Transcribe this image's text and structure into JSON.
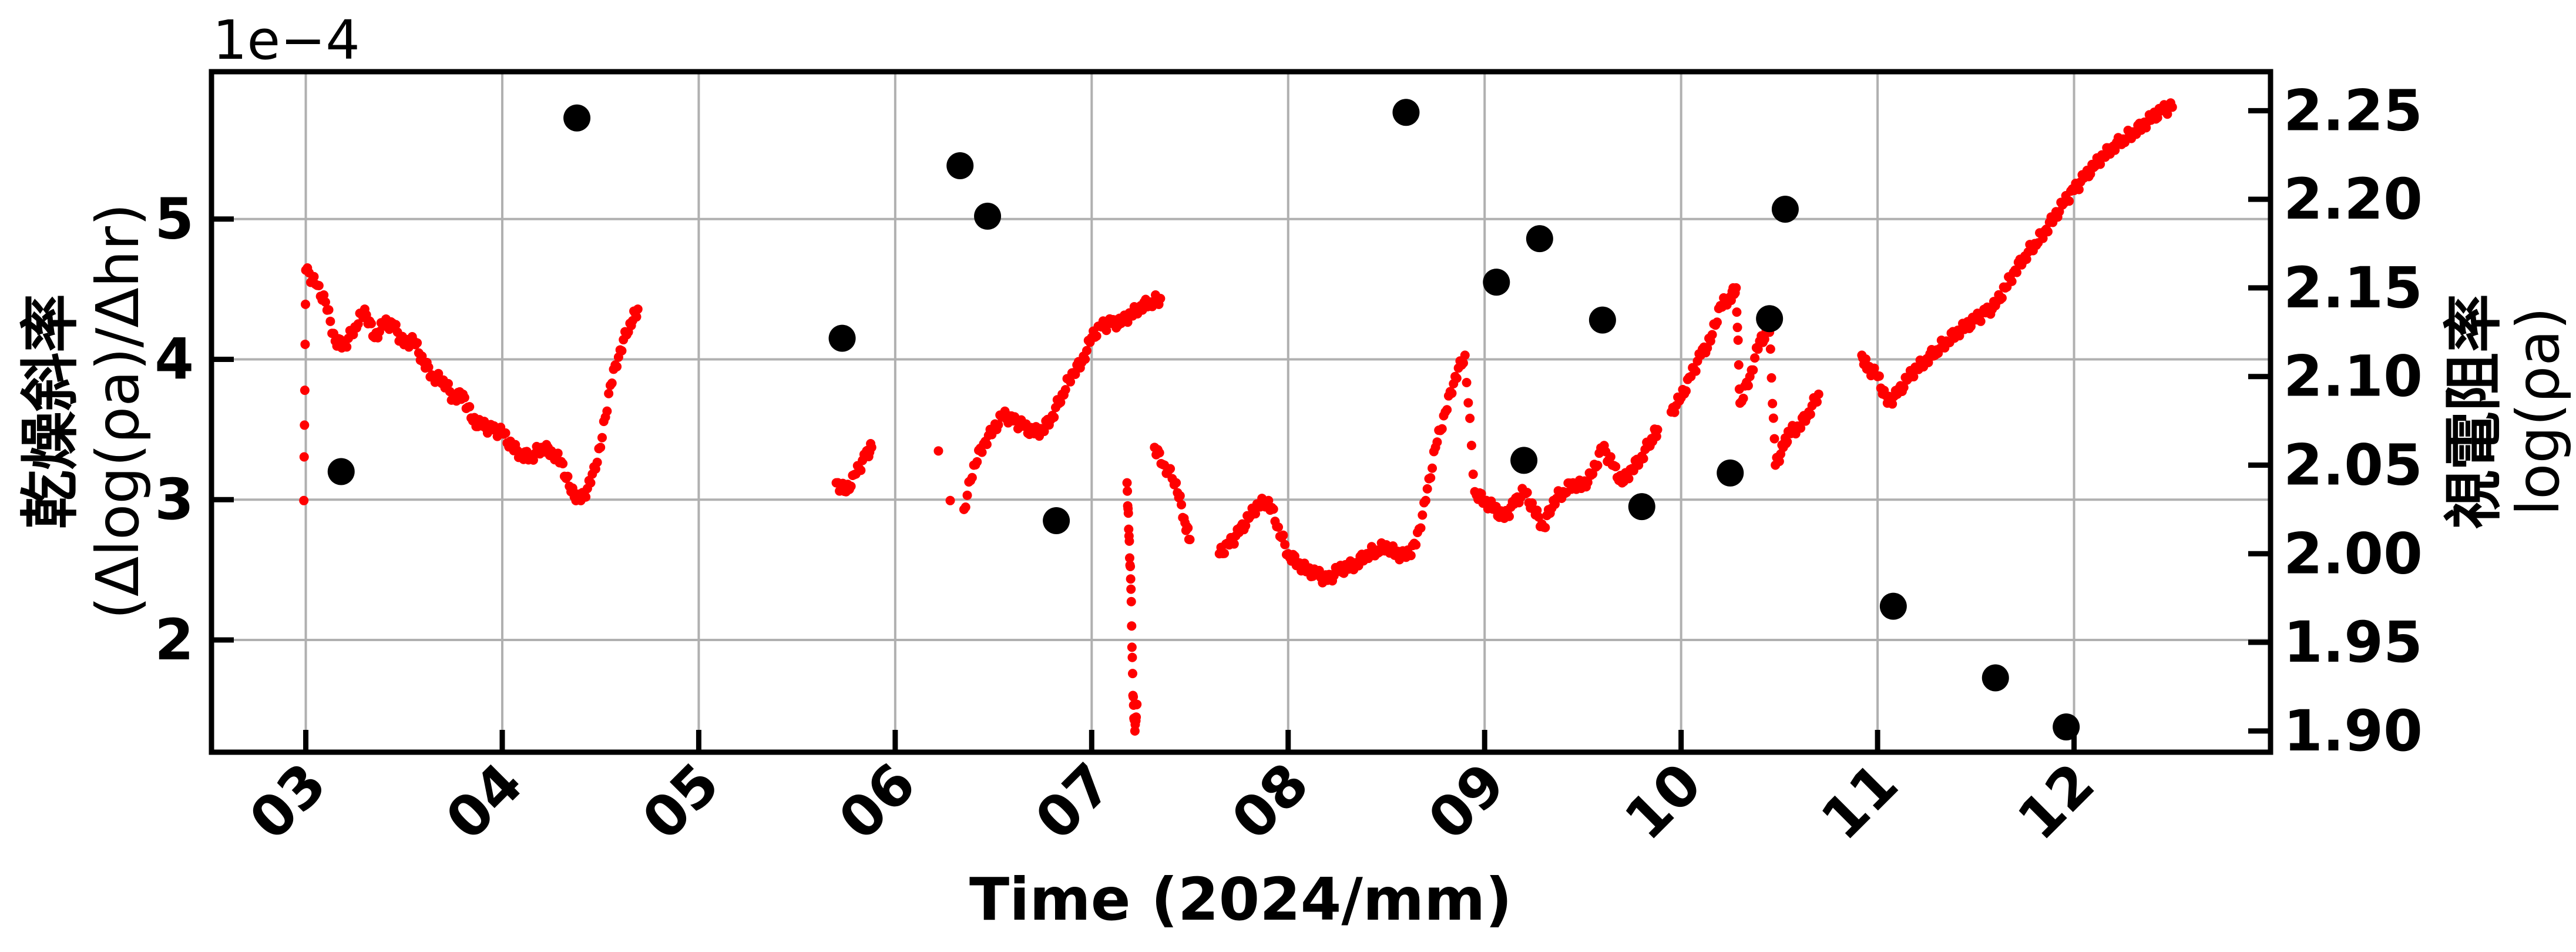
{
  "chart_data": {
    "type": "scatter",
    "xlabel": "Time (2024/mm)",
    "x_ticks": [
      "03",
      "04",
      "05",
      "06",
      "07",
      "08",
      "09",
      "10",
      "11",
      "12"
    ],
    "x_range_month": [
      2.52,
      13.0
    ],
    "left_axis": {
      "label_line1": "乾燥斜率",
      "label_line2": "(Δlog(ρa)/Δhr)",
      "multiplier": "1e−4",
      "ticks": [
        "2",
        "3",
        "4",
        "5"
      ],
      "range": [
        1.2,
        6.05
      ]
    },
    "right_axis": {
      "label_line1": "視電阻率",
      "label_line2": "log(ρa)",
      "ticks": [
        "1.90",
        "1.95",
        "2.00",
        "2.05",
        "2.10",
        "2.15",
        "2.20",
        "2.25"
      ],
      "range": [
        1.888,
        2.272
      ]
    },
    "grid": true,
    "series": [
      {
        "axis": "left",
        "color": "#000000",
        "marker": "large-circle",
        "points": [
          [
            3.18,
            3.2
          ],
          [
            4.38,
            5.72
          ],
          [
            5.73,
            4.15
          ],
          [
            6.33,
            5.38
          ],
          [
            6.47,
            5.02
          ],
          [
            6.82,
            2.85
          ],
          [
            8.6,
            5.76
          ],
          [
            9.06,
            4.55
          ],
          [
            9.2,
            3.28
          ],
          [
            9.28,
            4.86
          ],
          [
            9.6,
            4.28
          ],
          [
            9.8,
            2.95
          ],
          [
            10.25,
            3.19
          ],
          [
            10.45,
            4.29
          ],
          [
            10.53,
            5.07
          ],
          [
            11.08,
            2.24
          ],
          [
            11.6,
            1.73
          ],
          [
            11.96,
            1.38
          ]
        ]
      },
      {
        "axis": "right",
        "color": "#ff0000",
        "marker": "small-dot",
        "points": [
          [
            2.99,
            2.03
          ],
          [
            3.0,
            2.16
          ],
          [
            3.05,
            2.152
          ],
          [
            3.1,
            2.142
          ],
          [
            3.15,
            2.12
          ],
          [
            3.2,
            2.118
          ],
          [
            3.25,
            2.128
          ],
          [
            3.3,
            2.138
          ],
          [
            3.35,
            2.122
          ],
          [
            3.4,
            2.13
          ],
          [
            3.45,
            2.128
          ],
          [
            3.5,
            2.118
          ],
          [
            3.55,
            2.12
          ],
          [
            3.6,
            2.108
          ],
          [
            3.65,
            2.1
          ],
          [
            3.7,
            2.098
          ],
          [
            3.75,
            2.088
          ],
          [
            3.8,
            2.09
          ],
          [
            3.85,
            2.075
          ],
          [
            3.9,
            2.072
          ],
          [
            3.95,
            2.07
          ],
          [
            4.0,
            2.068
          ],
          [
            4.05,
            2.06
          ],
          [
            4.1,
            2.056
          ],
          [
            4.15,
            2.055
          ],
          [
            4.2,
            2.06
          ],
          [
            4.25,
            2.058
          ],
          [
            4.3,
            2.052
          ],
          [
            4.35,
            2.035
          ],
          [
            4.4,
            2.03
          ],
          [
            4.45,
            2.04
          ],
          [
            4.5,
            2.06
          ],
          [
            4.55,
            2.095
          ],
          [
            4.6,
            2.115
          ],
          [
            4.65,
            2.13
          ],
          [
            4.69,
            2.138
          ],
          [
            5.7,
            2.04
          ],
          [
            5.75,
            2.035
          ],
          [
            5.8,
            2.045
          ],
          [
            5.85,
            2.055
          ],
          [
            5.88,
            2.06
          ],
          [
            6.22,
            2.058
          ],
          [
            6.28,
            2.03
          ],
          [
            6.35,
            2.025
          ],
          [
            6.4,
            2.05
          ],
          [
            6.45,
            2.062
          ],
          [
            6.5,
            2.07
          ],
          [
            6.55,
            2.078
          ],
          [
            6.6,
            2.075
          ],
          [
            6.65,
            2.072
          ],
          [
            6.7,
            2.068
          ],
          [
            6.75,
            2.07
          ],
          [
            6.8,
            2.078
          ],
          [
            6.85,
            2.09
          ],
          [
            6.9,
            2.102
          ],
          [
            6.95,
            2.108
          ],
          [
            7.0,
            2.122
          ],
          [
            7.05,
            2.128
          ],
          [
            7.1,
            2.13
          ],
          [
            7.15,
            2.13
          ],
          [
            7.2,
            2.135
          ],
          [
            7.25,
            2.14
          ],
          [
            7.3,
            2.142
          ],
          [
            7.35,
            2.144
          ],
          [
            7.18,
            2.04
          ],
          [
            7.19,
            2.01
          ],
          [
            7.2,
            1.98
          ],
          [
            7.21,
            1.92
          ],
          [
            7.22,
            1.9
          ],
          [
            7.23,
            1.915
          ],
          [
            7.32,
            2.06
          ],
          [
            7.37,
            2.05
          ],
          [
            7.43,
            2.04
          ],
          [
            7.47,
            2.02
          ],
          [
            7.5,
            2.008
          ],
          [
            7.65,
            2.0
          ],
          [
            7.7,
            2.005
          ],
          [
            7.75,
            2.012
          ],
          [
            7.8,
            2.02
          ],
          [
            7.85,
            2.028
          ],
          [
            7.9,
            2.03
          ],
          [
            7.95,
            2.015
          ],
          [
            8.0,
            2.0
          ],
          [
            8.05,
            1.995
          ],
          [
            8.1,
            1.99
          ],
          [
            8.15,
            1.988
          ],
          [
            8.2,
            1.985
          ],
          [
            8.25,
            1.99
          ],
          [
            8.3,
            1.992
          ],
          [
            8.35,
            1.995
          ],
          [
            8.4,
            2.0
          ],
          [
            8.45,
            2.002
          ],
          [
            8.5,
            2.005
          ],
          [
            8.55,
            2.0
          ],
          [
            8.6,
            1.998
          ],
          [
            8.65,
            2.005
          ],
          [
            8.7,
            2.03
          ],
          [
            8.75,
            2.06
          ],
          [
            8.8,
            2.08
          ],
          [
            8.85,
            2.1
          ],
          [
            8.9,
            2.112
          ],
          [
            8.95,
            2.035
          ],
          [
            9.0,
            2.03
          ],
          [
            9.05,
            2.025
          ],
          [
            9.1,
            2.02
          ],
          [
            9.15,
            2.028
          ],
          [
            9.2,
            2.035
          ],
          [
            9.25,
            2.025
          ],
          [
            9.3,
            2.015
          ],
          [
            9.35,
            2.03
          ],
          [
            9.4,
            2.035
          ],
          [
            9.45,
            2.04
          ],
          [
            9.5,
            2.038
          ],
          [
            9.55,
            2.045
          ],
          [
            9.6,
            2.06
          ],
          [
            9.65,
            2.05
          ],
          [
            9.7,
            2.04
          ],
          [
            9.75,
            2.048
          ],
          [
            9.8,
            2.055
          ],
          [
            9.85,
            2.065
          ],
          [
            9.88,
            2.07
          ],
          [
            9.95,
            2.08
          ],
          [
            10.0,
            2.088
          ],
          [
            10.05,
            2.1
          ],
          [
            10.1,
            2.112
          ],
          [
            10.15,
            2.12
          ],
          [
            10.2,
            2.14
          ],
          [
            10.25,
            2.145
          ],
          [
            10.28,
            2.15
          ],
          [
            10.3,
            2.085
          ],
          [
            10.35,
            2.1
          ],
          [
            10.4,
            2.12
          ],
          [
            10.45,
            2.125
          ],
          [
            10.48,
            2.05
          ],
          [
            10.52,
            2.06
          ],
          [
            10.55,
            2.068
          ],
          [
            10.6,
            2.072
          ],
          [
            10.65,
            2.08
          ],
          [
            10.7,
            2.09
          ],
          [
            10.92,
            2.112
          ],
          [
            10.95,
            2.105
          ],
          [
            11.0,
            2.1
          ],
          [
            11.05,
            2.085
          ],
          [
            11.1,
            2.09
          ],
          [
            11.15,
            2.098
          ],
          [
            11.2,
            2.105
          ],
          [
            11.25,
            2.11
          ],
          [
            11.3,
            2.115
          ],
          [
            11.35,
            2.12
          ],
          [
            11.4,
            2.125
          ],
          [
            11.45,
            2.128
          ],
          [
            11.5,
            2.132
          ],
          [
            11.55,
            2.136
          ],
          [
            11.6,
            2.14
          ],
          [
            11.65,
            2.15
          ],
          [
            11.7,
            2.16
          ],
          [
            11.75,
            2.168
          ],
          [
            11.8,
            2.175
          ],
          [
            11.85,
            2.182
          ],
          [
            11.9,
            2.19
          ],
          [
            11.95,
            2.198
          ],
          [
            12.0,
            2.205
          ],
          [
            12.05,
            2.212
          ],
          [
            12.1,
            2.218
          ],
          [
            12.15,
            2.225
          ],
          [
            12.2,
            2.23
          ],
          [
            12.25,
            2.234
          ],
          [
            12.3,
            2.238
          ],
          [
            12.35,
            2.242
          ],
          [
            12.4,
            2.246
          ],
          [
            12.45,
            2.25
          ],
          [
            12.5,
            2.252
          ]
        ]
      }
    ]
  }
}
